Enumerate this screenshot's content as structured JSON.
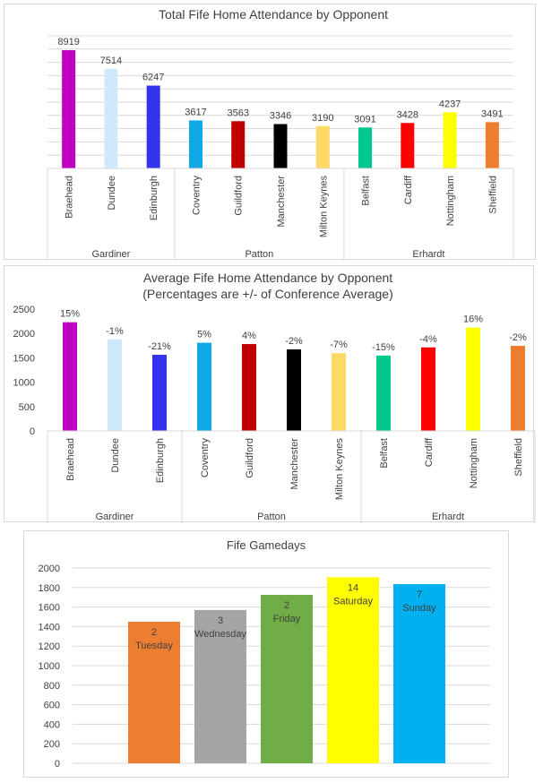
{
  "charts": [
    {
      "id": "total",
      "type": "bar",
      "title": "Total Fife Home Attendance by Opponent",
      "categories": [
        "Braehead",
        "Dundee",
        "Edinburgh",
        "Coventry",
        "Guildford",
        "Manchester",
        "Milton Keynes",
        "Belfast",
        "Cardiff",
        "Nottingham",
        "Sheffield"
      ],
      "values": [
        8919,
        7514,
        6247,
        3617,
        3563,
        3346,
        3190,
        3091,
        3428,
        4237,
        3491
      ],
      "labels": [
        "8919",
        "7514",
        "6247",
        "3617",
        "3563",
        "3346",
        "3190",
        "3091",
        "3428",
        "4237",
        "3491"
      ],
      "colors": [
        "#c000c0",
        "#cfe9fb",
        "#3333ee",
        "#11a8e8",
        "#c00000",
        "#000000",
        "#ffd966",
        "#00c88c",
        "#ff0000",
        "#ffff00",
        "#ed7d31"
      ],
      "groups": [
        {
          "name": "Gardiner",
          "count": 3
        },
        {
          "name": "Patton",
          "count": 4
        },
        {
          "name": "Erhardt",
          "count": 4
        }
      ],
      "ylim": [
        0,
        10000
      ],
      "gridlines": true,
      "y_axis_shown": false
    },
    {
      "id": "average",
      "type": "bar",
      "title": "Average Fife Home Attendance by Opponent",
      "subtitle": "(Percentages are +/- of Conference Average)",
      "categories": [
        "Braehead",
        "Dundee",
        "Edinburgh",
        "Coventry",
        "Guildford",
        "Manchester",
        "Milton Keynes",
        "Belfast",
        "Cardiff",
        "Nottingham",
        "Sheffield"
      ],
      "values": [
        2230,
        1879,
        1562,
        1809,
        1782,
        1673,
        1595,
        1546,
        1714,
        2119,
        1746
      ],
      "labels": [
        "15%",
        "-1%",
        "-21%",
        "5%",
        "4%",
        "-2%",
        "-7%",
        "-15%",
        "-4%",
        "16%",
        "-2%"
      ],
      "colors": [
        "#c000c0",
        "#cfe9fb",
        "#3333ee",
        "#11a8e8",
        "#c00000",
        "#000000",
        "#ffd966",
        "#00c88c",
        "#ff0000",
        "#ffff00",
        "#ed7d31"
      ],
      "groups": [
        {
          "name": "Gardiner",
          "count": 3
        },
        {
          "name": "Patton",
          "count": 4
        },
        {
          "name": "Erhardt",
          "count": 4
        }
      ],
      "ylim": [
        0,
        2500
      ],
      "yticks": [
        0,
        500,
        1000,
        1500,
        2000,
        2500
      ],
      "gridlines": false
    },
    {
      "id": "gamedays",
      "type": "bar",
      "title": "Fife Gamedays",
      "categories": [
        "Tuesday",
        "Wednesday",
        "Friday",
        "Saturday",
        "Sunday"
      ],
      "counts": [
        "2",
        "3",
        "2",
        "14",
        "7"
      ],
      "values": [
        1450,
        1570,
        1725,
        1905,
        1835
      ],
      "colors": [
        "#ed7d31",
        "#a5a5a5",
        "#70ad47",
        "#ffff00",
        "#00b0f0"
      ],
      "ylim": [
        0,
        2000
      ],
      "yticks": [
        0,
        200,
        400,
        600,
        800,
        1000,
        1200,
        1400,
        1600,
        1800,
        2000
      ],
      "gridlines": true
    }
  ]
}
